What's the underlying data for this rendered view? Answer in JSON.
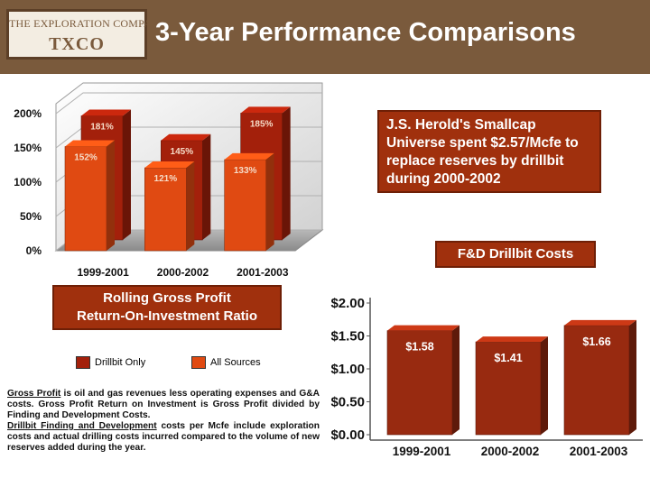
{
  "header": {
    "logo": {
      "line1": "THE EXPLORATION COMPANY",
      "line2": "TXCO"
    },
    "title": "3-Year Performance Comparisons"
  },
  "callout": {
    "text": "J.S. Herold's Smallcap Universe spent $2.57/Mcfe to replace reserves by drillbit during 2000-2002"
  },
  "roi_box": {
    "line1": "Rolling Gross Profit",
    "line2": "Return-On-Investment Ratio"
  },
  "fd_box": {
    "title": "F&D Drillbit Costs"
  },
  "legend": {
    "items": [
      {
        "label": "Drillbit Only",
        "color": "#a3200b"
      },
      {
        "label": "All Sources",
        "color": "#e04a12"
      }
    ]
  },
  "footnote": {
    "p1_term": "Gross Profit",
    "p1_rest": " is oil and gas revenues less operating expenses and G&A costs. Gross Profit Return on Investment is Gross Profit divided by Finding and Development Costs.",
    "p2_term": "Drillbit Finding and Development",
    "p2_rest": " costs per Mcfe include exploration costs and actual drilling costs incurred compared to the volume of new reserves added during the year."
  },
  "colors": {
    "brand_brown": "#7a5a3c",
    "box_fill": "#a0300d",
    "drillbit_bar": "#a3200b",
    "all_sources_bar": "#e04a12",
    "fd_bar": "#982a10"
  },
  "chart_data": [
    {
      "type": "bar",
      "title": "Rolling Gross Profit Return-On-Investment Ratio",
      "categories": [
        "1999-2001",
        "2000-2002",
        "2001-2003"
      ],
      "series": [
        {
          "name": "Drillbit Only",
          "values": [
            181,
            145,
            185
          ],
          "labels": [
            "181%",
            "145%",
            "185%"
          ]
        },
        {
          "name": "All Sources",
          "values": [
            152,
            121,
            133
          ],
          "labels": [
            "152%",
            "121%",
            "133%"
          ]
        }
      ],
      "yticks": [
        "0%",
        "50%",
        "100%",
        "150%",
        "200%"
      ],
      "ylim": [
        0,
        200
      ],
      "xlabel": "",
      "ylabel": "",
      "legend": "bottom-left"
    },
    {
      "type": "bar",
      "title": "F&D Drillbit Costs",
      "categories": [
        "1999-2001",
        "2000-2002",
        "2001-2003"
      ],
      "values": [
        1.58,
        1.41,
        1.66
      ],
      "labels": [
        "$1.58",
        "$1.41",
        "$1.66"
      ],
      "yticks": [
        "$0.00",
        "$0.50",
        "$1.00",
        "$1.50",
        "$2.00"
      ],
      "ylim": [
        0,
        2
      ],
      "xlabel": "",
      "ylabel": ""
    }
  ]
}
